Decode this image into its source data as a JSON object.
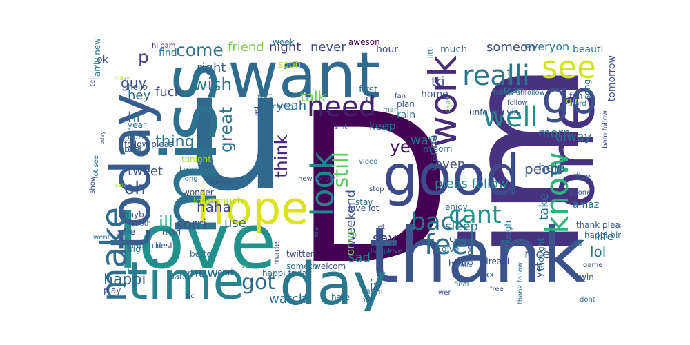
{
  "words": [
    {
      "text": "D",
      "color": "#440154"
    },
    {
      "text": "im",
      "color": "#46327e"
    },
    {
      "text": "u",
      "color": "#31688e"
    },
    {
      "text": "love",
      "color": "#21918c"
    },
    {
      "text": "thank",
      "color": "#3b528b"
    },
    {
      "text": "miss",
      "color": "#2c728e"
    },
    {
      "text": "want",
      "color": "#2f6b8e"
    },
    {
      "text": "today",
      "color": "#365d8d"
    },
    {
      "text": "day",
      "color": "#2a788e"
    },
    {
      "text": "good",
      "color": "#3e4989"
    },
    {
      "text": "one",
      "color": "#46337f"
    },
    {
      "text": "time",
      "color": "#26828e"
    },
    {
      "text": "hope",
      "color": "#dde318"
    },
    {
      "text": "go",
      "color": "#3d4e8a"
    },
    {
      "text": "look",
      "color": "#25848e"
    },
    {
      "text": "work",
      "color": "#472c7a"
    },
    {
      "text": "see",
      "color": "#d2e21b"
    },
    {
      "text": "make",
      "color": "#2f6c8e"
    },
    {
      "text": "need",
      "color": "#482071"
    },
    {
      "text": "know",
      "color": "#2db27d"
    },
    {
      "text": "feel",
      "color": "#2e6e8e"
    },
    {
      "text": "realli",
      "color": "#2a768e"
    },
    {
      "text": "well",
      "color": "#24878e"
    },
    {
      "text": "back",
      "color": "#2c718e"
    },
    {
      "text": "cant",
      "color": "#1f958b"
    },
    {
      "text": "got",
      "color": "#306a8e"
    },
    {
      "text": "still",
      "color": "#5ec962"
    },
    {
      "text": "great",
      "color": "#2a788e"
    },
    {
      "text": "come",
      "color": "#2c738e"
    },
    {
      "text": "oh",
      "color": "#3a548c"
    },
    {
      "text": "think",
      "color": "#482677"
    },
    {
      "text": "ye",
      "color": "#481668"
    },
    {
      "text": "p",
      "color": "#433d84"
    },
    {
      "text": "happi",
      "color": "#31688e"
    },
    {
      "text": "lol",
      "color": "#2c718e"
    },
    {
      "text": "new",
      "color": "#2f6b8e"
    },
    {
      "text": "wish",
      "color": "#2a788e"
    },
    {
      "text": "guy",
      "color": "#3b528b"
    },
    {
      "text": "night",
      "color": "#44397d"
    },
    {
      "text": "say",
      "color": "#423f85"
    },
    {
      "text": "sad",
      "color": "#25848e"
    },
    {
      "text": "someon",
      "color": "#3e4989"
    },
    {
      "text": "never",
      "color": "#3f4788"
    },
    {
      "text": "friend",
      "color": "#7ad151"
    },
    {
      "text": "hi",
      "color": "#2c718e"
    },
    {
      "text": "fuck",
      "color": "#3e4c8a"
    },
    {
      "text": "thing",
      "color": "#2a788e"
    },
    {
      "text": "tweet",
      "color": "#3b528b"
    },
    {
      "text": "right",
      "color": "#355f8d"
    },
    {
      "text": "hey",
      "color": "#2e6e8e"
    },
    {
      "text": "talk",
      "color": "#6ccd5a"
    },
    {
      "text": "yeah",
      "color": "#31688e"
    },
    {
      "text": "keep",
      "color": "#2d708e"
    },
    {
      "text": "peopl",
      "color": "#3b528b"
    },
    {
      "text": "alway",
      "color": "#2c718e"
    },
    {
      "text": "nice",
      "color": "#3b528b"
    },
    {
      "text": "life",
      "color": "#31688e"
    },
    {
      "text": "sleep",
      "color": "#2a788e"
    },
    {
      "text": "pleas follow",
      "color": "#23898e"
    },
    {
      "text": "x",
      "color": "#2db27d"
    },
    {
      "text": "watch",
      "color": "#2c728e"
    },
    {
      "text": "sorri",
      "color": "#3b528b"
    },
    {
      "text": "ill",
      "color": "#22a785"
    },
    {
      "text": "use",
      "color": "#2c728e"
    },
    {
      "text": "haha",
      "color": "#3e4989"
    },
    {
      "text": "iv",
      "color": "#365d8d"
    },
    {
      "text": "weekend",
      "color": "#3b528b"
    },
    {
      "text": "wanna",
      "color": "#3b528b"
    },
    {
      "text": "way",
      "color": "#2c728e"
    },
    {
      "text": "take",
      "color": "#2c718e"
    },
    {
      "text": "help",
      "color": "#31688e"
    },
    {
      "text": "morn",
      "color": "#2a788e"
    },
    {
      "text": "tri",
      "color": "#3b528b"
    },
    {
      "text": "even",
      "color": "#3b528b"
    },
    {
      "text": "omg",
      "color": "#6ccd5a"
    },
    {
      "text": "everyon",
      "color": "#2a788e"
    },
    {
      "text": "tomorrow",
      "color": "#3b528b"
    },
    {
      "text": "beauti",
      "color": "#2c718e"
    },
    {
      "text": "much",
      "color": "#31688e"
    },
    {
      "text": "hour",
      "color": "#3e4989"
    },
    {
      "text": "first",
      "color": "#2c728e"
    },
    {
      "text": "home",
      "color": "#3b528b"
    },
    {
      "text": "soon",
      "color": "#a8db34"
    },
    {
      "text": "aweson",
      "color": "#440154"
    },
    {
      "text": "week",
      "color": "#2c718e"
    },
    {
      "text": "hello",
      "color": "#3b528b"
    },
    {
      "text": "find",
      "color": "#2a788e"
    },
    {
      "text": "year",
      "color": "#2c718e"
    },
    {
      "text": "ok",
      "color": "#3b528b"
    },
    {
      "text": "arriv new",
      "color": "#2a788e"
    },
    {
      "text": "hi bam",
      "color": "#482071"
    },
    {
      "text": "plea",
      "color": "#2c718e"
    },
    {
      "text": "ur",
      "color": "#3b528b"
    },
    {
      "text": "okay",
      "color": "#7ad151"
    },
    {
      "text": "littl",
      "color": "#2c718e"
    },
    {
      "text": "team",
      "color": "#2a788e"
    },
    {
      "text": "fan",
      "color": "#3e4989"
    },
    {
      "text": "man",
      "color": "#2c718e"
    },
    {
      "text": "plan",
      "color": "#3b528b"
    },
    {
      "text": "rain",
      "color": "#2c718e"
    },
    {
      "text": "unfollow via",
      "color": "#3e4989"
    },
    {
      "text": "follow unfollow",
      "color": "#2c718e"
    },
    {
      "text": "follow",
      "color": "#3b528b"
    },
    {
      "text": "meet",
      "color": "#2a788e"
    },
    {
      "text": "fun",
      "color": "#3b528b"
    },
    {
      "text": "hard",
      "color": "#2c718e"
    },
    {
      "text": "girl",
      "color": "#a8db34"
    },
    {
      "text": "song",
      "color": "#2c718e"
    },
    {
      "text": "bam follow",
      "color": "#3e4989"
    },
    {
      "text": "live",
      "color": "#2c718e"
    },
    {
      "text": "phone",
      "color": "#3b528b"
    },
    {
      "text": "amaz",
      "color": "#2c718e"
    },
    {
      "text": "thank pleas",
      "color": "#3b528b"
    },
    {
      "text": "call",
      "color": "#2c718e"
    },
    {
      "text": "game",
      "color": "#3e4989"
    },
    {
      "text": "happi birthday",
      "color": "#2c718e"
    },
    {
      "text": "win",
      "color": "#3b528b"
    },
    {
      "text": "dont",
      "color": "#2c718e"
    },
    {
      "text": "id",
      "color": "#3b528b"
    },
    {
      "text": "thank follow",
      "color": "#2c718e"
    },
    {
      "text": "free",
      "color": "#3e4989"
    },
    {
      "text": "yet",
      "color": "#3b528b"
    },
    {
      "text": "thought",
      "color": "#2c718e"
    },
    {
      "text": "though",
      "color": "#2a788e"
    },
    {
      "text": "alreadi",
      "color": "#3e4989"
    },
    {
      "text": "xx",
      "color": "#2c718e"
    },
    {
      "text": "done",
      "color": "#3b528b"
    },
    {
      "text": "final",
      "color": "#2c718e"
    },
    {
      "text": "wer",
      "color": "#3b528b"
    },
    {
      "text": "smile",
      "color": "#2c718e"
    },
    {
      "text": "hear",
      "color": "#3e4989"
    },
    {
      "text": "give",
      "color": "#2c718e"
    },
    {
      "text": "cute",
      "color": "#3b528b"
    },
    {
      "text": "start",
      "color": "#2c718e"
    },
    {
      "text": "happen",
      "color": "#3b528b"
    },
    {
      "text": "love x",
      "color": "#2c718e"
    },
    {
      "text": "let",
      "color": "#3b528b"
    },
    {
      "text": "stay",
      "color": "#2c718e"
    },
    {
      "text": "love lot",
      "color": "#3e4989"
    },
    {
      "text": "enjoy",
      "color": "#2c718e"
    },
    {
      "text": "welcom",
      "color": "#3b528b"
    },
    {
      "text": "mani",
      "color": "#2c718e"
    },
    {
      "text": "bad",
      "color": "#3b528b"
    },
    {
      "text": "hate",
      "color": "#2c718e"
    },
    {
      "text": "made",
      "color": "#3b528b"
    },
    {
      "text": "someth",
      "color": "#2c718e"
    },
    {
      "text": "twitter",
      "color": "#3e4989"
    },
    {
      "text": "happi friday",
      "color": "#2c718e"
    },
    {
      "text": "end",
      "color": "#3b528b"
    },
    {
      "text": "cri",
      "color": "#2c718e"
    },
    {
      "text": "best",
      "color": "#3b528b"
    },
    {
      "text": "babi",
      "color": "#2c718e"
    },
    {
      "text": "bc",
      "color": "#3b528b"
    },
    {
      "text": "leav",
      "color": "#2c718e"
    },
    {
      "text": "play",
      "color": "#3e4989"
    },
    {
      "text": "big",
      "color": "#2c718e"
    },
    {
      "text": "sure",
      "color": "#3b528b"
    },
    {
      "text": "snapchat",
      "color": "#2c718e"
    },
    {
      "text": "mayb",
      "color": "#3b528b"
    },
    {
      "text": "went",
      "color": "#2c718e"
    },
    {
      "text": "love much",
      "color": "#a8db34"
    },
    {
      "text": "read",
      "color": "#3b528b"
    },
    {
      "text": "better",
      "color": "#2c718e"
    },
    {
      "text": "wonder",
      "color": "#3e4989"
    },
    {
      "text": "long",
      "color": "#2c718e"
    },
    {
      "text": "anoth",
      "color": "#3b528b"
    },
    {
      "text": "hurt",
      "color": "#2c718e"
    },
    {
      "text": "follow pleas",
      "color": "#3b528b"
    },
    {
      "text": "busi",
      "color": "#2c718e"
    },
    {
      "text": "ask",
      "color": "#3b528b"
    },
    {
      "text": "true",
      "color": "#2c718e"
    },
    {
      "text": "tonight",
      "color": "#a8db34"
    },
    {
      "text": "mean",
      "color": "#3b528b"
    },
    {
      "text": "dm",
      "color": "#2c718e"
    },
    {
      "text": "tell",
      "color": "#3e4989"
    },
    {
      "text": "wait",
      "color": "#2c718e"
    },
    {
      "text": "last",
      "color": "#3b528b"
    },
    {
      "text": "chang",
      "color": "#2c718e"
    },
    {
      "text": "shit",
      "color": "#3b528b"
    },
    {
      "text": "video",
      "color": "#2c718e"
    },
    {
      "text": "stop",
      "color": "#3b528b"
    },
    {
      "text": "im sorri",
      "color": "#2c718e"
    },
    {
      "text": "new follow",
      "color": "#3e4989"
    },
    {
      "text": "lot see",
      "color": "#2c718e"
    },
    {
      "text": "show",
      "color": "#3b528b"
    },
    {
      "text": "tire",
      "color": "#2c718e"
    },
    {
      "text": "friday",
      "color": "#a8db34"
    },
    {
      "text": "bday",
      "color": "#3b528b"
    },
    {
      "text": "said",
      "color": "#a8db34"
    },
    {
      "text": "day ever",
      "color": "#3b528b"
    },
    {
      "text": "lt",
      "color": "#2c718e"
    },
    {
      "text": "pl",
      "color": "#3b528b"
    },
    {
      "text": "ever day",
      "color": "#2c718e"
    },
    {
      "text": "birthday",
      "color": "#3e4989"
    }
  ]
}
